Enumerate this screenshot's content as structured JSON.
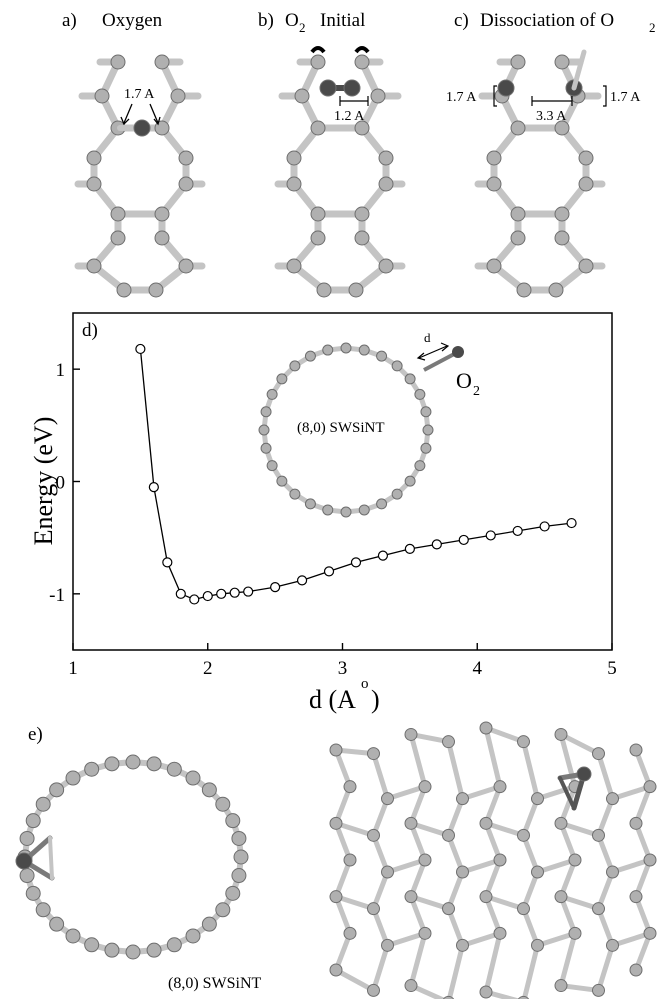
{
  "panels": {
    "a": {
      "letter": "a)",
      "title": "Oxygen",
      "bond": "1.7 A"
    },
    "b": {
      "letter": "b)",
      "title_main": "O",
      "title_sub": "2",
      "title_rest": "Initial",
      "bond": "1.2 A"
    },
    "c": {
      "letter": "c)",
      "title_main": "Dissociation of O",
      "title_sub": "2",
      "bond_left": "1.7 A",
      "bond_mid": "3.3 A",
      "bond_right": "1.7 A"
    },
    "e": {
      "letter": "e)",
      "caption": "(8,0) SWSiNT"
    }
  },
  "inset": {
    "label": "(8,0) SWSiNT",
    "distance_label": "d",
    "molecule_main": "O",
    "molecule_sub": "2"
  },
  "colors": {
    "atom": "#b0b0b0",
    "atom_edge": "#6e6e6e",
    "oxygen": "#4a4a4a",
    "bond": "#c4c4c4"
  },
  "chart_data": {
    "type": "line",
    "panel_label": "d)",
    "xlabel_main": "d (A",
    "xlabel_sup": "o",
    "xlabel_end": ")",
    "ylabel": "Energy (eV)",
    "xlim": [
      1,
      5
    ],
    "ylim": [
      -1.5,
      1.5
    ],
    "xticks": [
      1,
      2,
      3,
      4,
      5
    ],
    "yticks": [
      1,
      0,
      -1
    ],
    "ytick_labels": [
      "1",
      "0",
      "-1"
    ],
    "marker": "open-circle",
    "grid": false,
    "x": [
      1.5,
      1.6,
      1.7,
      1.8,
      1.9,
      2.0,
      2.1,
      2.2,
      2.3,
      2.5,
      2.7,
      2.9,
      3.1,
      3.3,
      3.5,
      3.7,
      3.9,
      4.1,
      4.3,
      4.5,
      4.7
    ],
    "y": [
      1.18,
      -0.05,
      -0.72,
      -1.0,
      -1.05,
      -1.02,
      -1.0,
      -0.99,
      -0.98,
      -0.94,
      -0.88,
      -0.8,
      -0.72,
      -0.66,
      -0.6,
      -0.56,
      -0.52,
      -0.48,
      -0.44,
      -0.4,
      -0.37
    ]
  }
}
